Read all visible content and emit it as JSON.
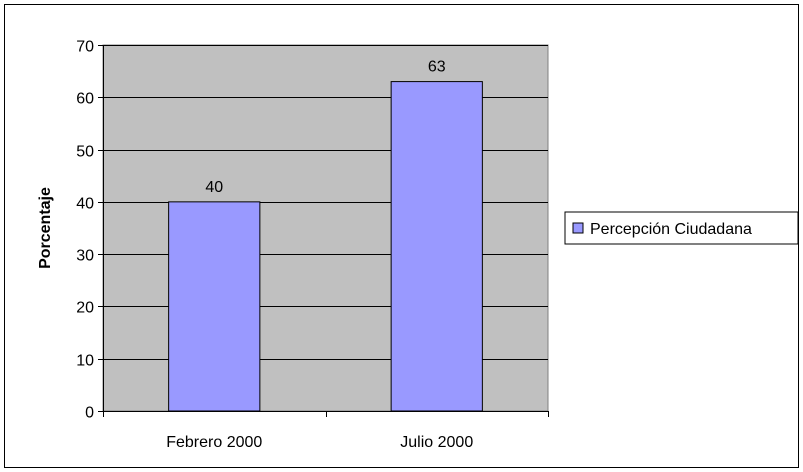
{
  "chart_data": {
    "type": "bar",
    "title": "",
    "xlabel": "",
    "ylabel": "Porcentaje",
    "categories": [
      "Febrero 2000",
      "Julio 2000"
    ],
    "series": [
      {
        "name": "Percepción Ciudadana",
        "values": [
          40,
          63
        ],
        "color": "#9999ff"
      }
    ],
    "data_labels": [
      "40",
      "63"
    ],
    "ylim": [
      0,
      70
    ],
    "yticks": [
      0,
      10,
      20,
      30,
      40,
      50,
      60,
      70
    ],
    "ytick_labels": [
      "0",
      "10",
      "20",
      "30",
      "40",
      "50",
      "60",
      "70"
    ],
    "grid": true,
    "plot_background": "#c0c0c0",
    "legend_position": "right"
  }
}
